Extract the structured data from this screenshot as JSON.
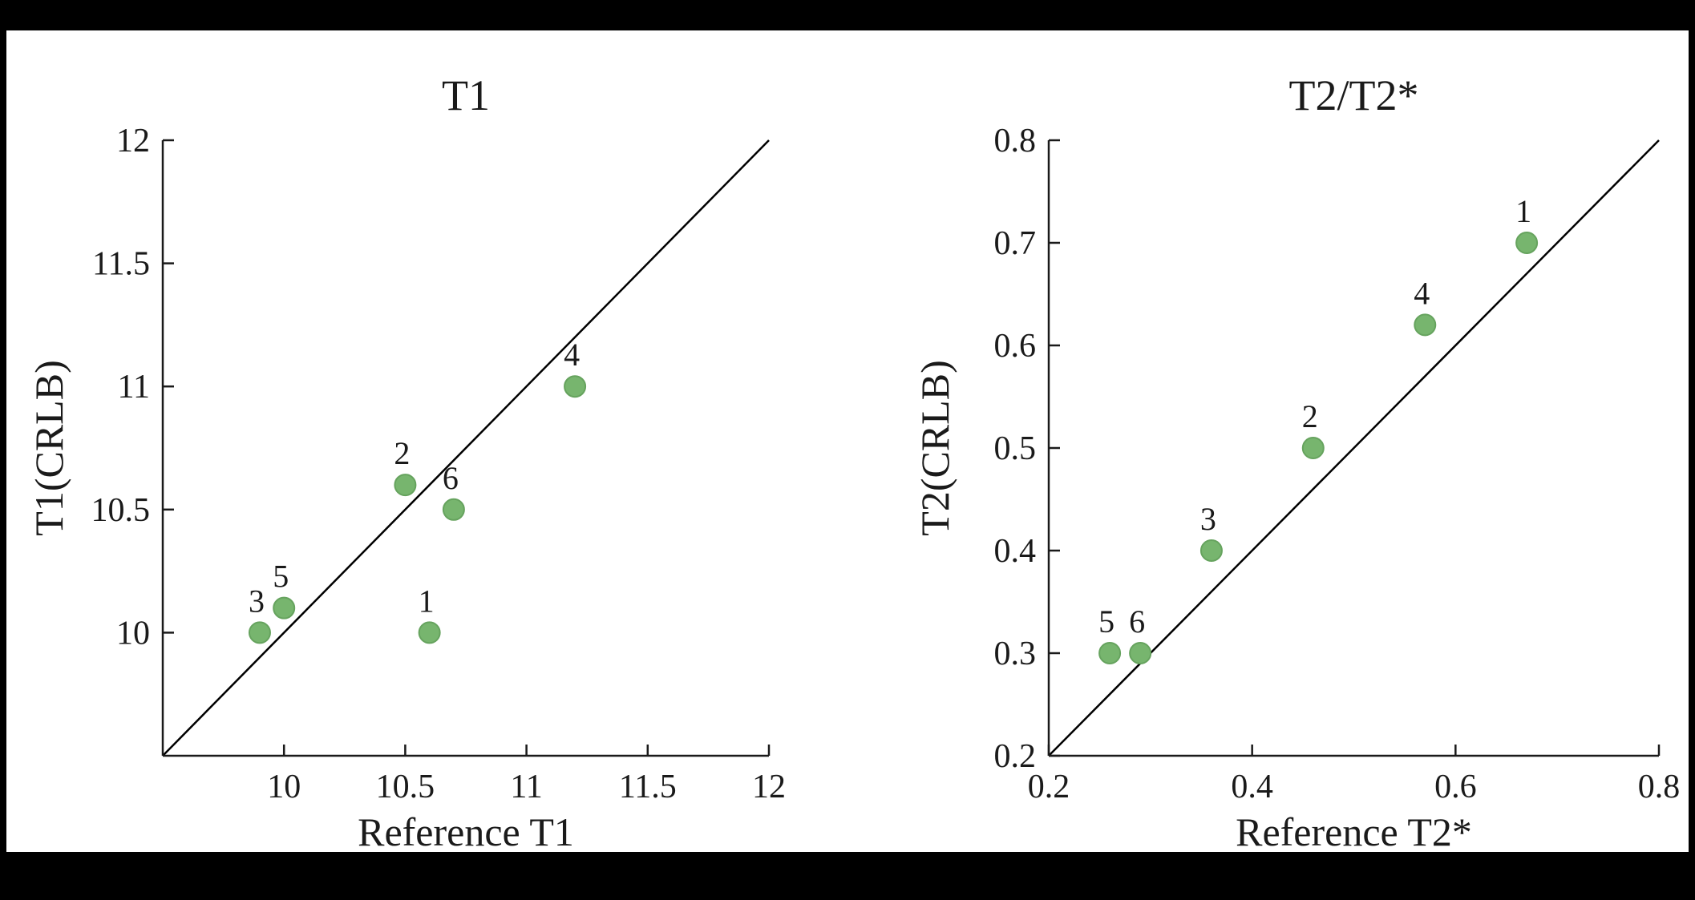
{
  "page": {
    "background_color": "#000000",
    "panel_color": "#ffffff",
    "axis_color": "#1a1a1a",
    "line_color": "#000000"
  },
  "chart_data": [
    {
      "type": "scatter",
      "title": "T1",
      "xlabel": "Reference T1",
      "ylabel": "T1(CRLB)",
      "xlim": [
        9.5,
        12
      ],
      "ylim": [
        9.5,
        12
      ],
      "xticks": [
        10,
        10.5,
        11,
        11.5,
        12
      ],
      "yticks": [
        10,
        10.5,
        11,
        11.5,
        12
      ],
      "identity_line": true,
      "grid": false,
      "legend": null,
      "marker_color": "#77B56E",
      "marker_edge_color": "#66A35E",
      "points": [
        {
          "label": "1",
          "x": 10.6,
          "y": 10.0
        },
        {
          "label": "2",
          "x": 10.5,
          "y": 10.6
        },
        {
          "label": "3",
          "x": 9.9,
          "y": 10.0
        },
        {
          "label": "4",
          "x": 11.2,
          "y": 11.0
        },
        {
          "label": "5",
          "x": 10.0,
          "y": 10.1
        },
        {
          "label": "6",
          "x": 10.7,
          "y": 10.5
        }
      ]
    },
    {
      "type": "scatter",
      "title": "T2/T2*",
      "xlabel": "Reference T2*",
      "ylabel": "T2(CRLB)",
      "xlim": [
        0.2,
        0.8
      ],
      "ylim": [
        0.2,
        0.8
      ],
      "xticks": [
        0.2,
        0.4,
        0.6,
        0.8
      ],
      "yticks": [
        0.2,
        0.3,
        0.4,
        0.5,
        0.6,
        0.7,
        0.8
      ],
      "identity_line": true,
      "grid": false,
      "legend": null,
      "marker_color": "#77B56E",
      "marker_edge_color": "#66A35E",
      "points": [
        {
          "label": "1",
          "x": 0.67,
          "y": 0.7
        },
        {
          "label": "2",
          "x": 0.46,
          "y": 0.5
        },
        {
          "label": "3",
          "x": 0.36,
          "y": 0.4
        },
        {
          "label": "4",
          "x": 0.57,
          "y": 0.62
        },
        {
          "label": "5",
          "x": 0.26,
          "y": 0.3
        },
        {
          "label": "6",
          "x": 0.29,
          "y": 0.3
        }
      ]
    }
  ]
}
